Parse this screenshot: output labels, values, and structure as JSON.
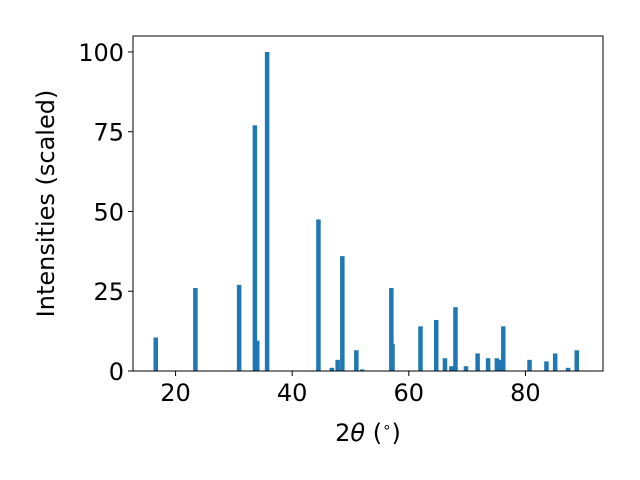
{
  "chart_data": {
    "type": "bar",
    "title": "",
    "xlabel": "2θ (°)",
    "ylabel": "Intensities (scaled)",
    "xlim": [
      12.7,
      93.3
    ],
    "ylim": [
      0,
      105
    ],
    "xticks": [
      20,
      40,
      60,
      80
    ],
    "yticks": [
      0,
      25,
      50,
      75,
      100
    ],
    "bar_color": "#1f77b4",
    "grid": false,
    "series": [
      {
        "x": [
          16.6,
          23.4,
          30.9,
          33.6,
          34.0,
          35.7,
          44.5,
          46.8,
          47.8,
          48.6,
          51.0,
          52.0,
          57.0,
          57.2,
          62.0,
          64.7,
          66.2,
          67.3,
          68.0,
          69.8,
          71.8,
          73.6,
          75.1,
          75.7,
          76.2,
          80.7,
          83.6,
          85.1,
          87.3,
          88.8
        ],
        "y": [
          10.5,
          26,
          27,
          77,
          9.5,
          100,
          47.5,
          1,
          3.5,
          36,
          6.5,
          0.5,
          26,
          8.5,
          14,
          16,
          4,
          1.5,
          20,
          1.5,
          5.5,
          4,
          4,
          3.5,
          14,
          3.5,
          3,
          5.5,
          1,
          6.5
        ]
      }
    ]
  }
}
